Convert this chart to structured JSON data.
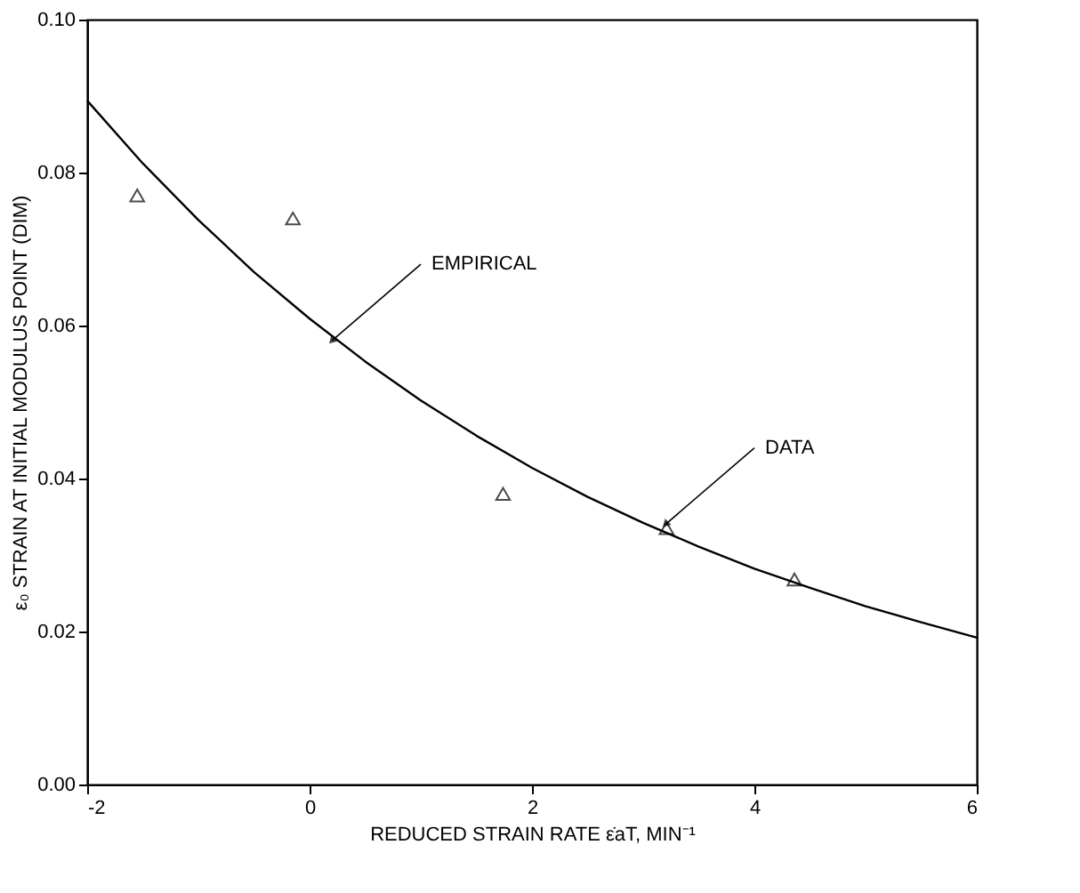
{
  "chart_data": {
    "type": "line",
    "xlabel": "REDUCED STRAIN RATE ε̇aT, MIN⁻¹",
    "ylabel": "ε₀ STRAIN AT INITIAL MODULUS POINT (DIM)",
    "xlim": [
      -2,
      6
    ],
    "xticks": [
      -2,
      0,
      2,
      4,
      6
    ],
    "ylim": [
      0,
      0.1
    ],
    "yticks": [
      {
        "value": 0,
        "label": "0.00"
      },
      {
        "value": 0.02,
        "label": "0.02"
      },
      {
        "value": 0.04,
        "label": "0.04"
      },
      {
        "value": 0.06,
        "label": "0.06"
      },
      {
        "value": 0.08,
        "label": "0.08"
      },
      {
        "value": 0.1,
        "label": "0.10"
      }
    ],
    "grid": false,
    "series": [
      {
        "color": "#000000",
        "marker": "none",
        "line_style": "solid",
        "x": [
          -2,
          -1.5,
          -1,
          -0.5,
          0,
          0.5,
          1,
          1.5,
          2,
          2.5,
          3,
          3.5,
          4,
          4.5,
          5,
          5.5,
          6
        ],
        "values": [
          0.0894,
          0.0812,
          0.0738,
          0.067,
          0.0609,
          0.0553,
          0.0502,
          0.0456,
          0.0414,
          0.0376,
          0.0342,
          0.0311,
          0.0282,
          0.0257,
          0.0233,
          0.0212,
          0.0192
        ]
      },
      {
        "type": "scatter",
        "color": "#000000",
        "marker": "triangle",
        "x": [
          -1.55,
          -0.15,
          1.74,
          3.21,
          4.36
        ],
        "values": [
          0.077,
          0.074,
          0.038,
          0.0335,
          0.0268
        ]
      }
    ],
    "annotations": [
      {
        "text": "EMPIRICAL",
        "x": 0.2,
        "y": 0.058
      },
      {
        "text": "DATA",
        "x": 3.2,
        "y": 0.034
      }
    ]
  }
}
